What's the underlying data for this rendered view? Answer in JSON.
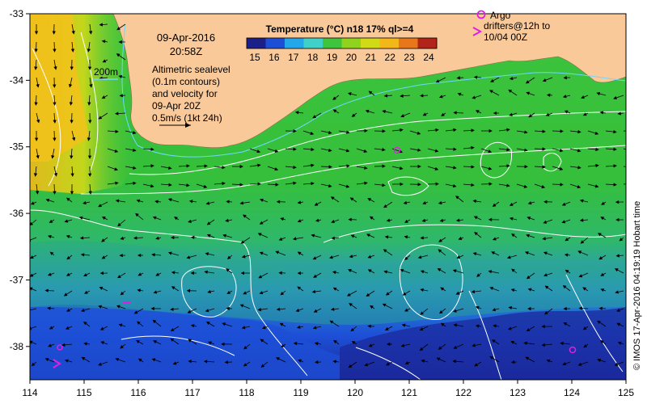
{
  "title_date": "09-Apr-2016",
  "title_time": "20:58Z",
  "colorbar": {
    "title": "Temperature (°C) n18 17% ql>=4",
    "ticks": [
      "15",
      "16",
      "17",
      "18",
      "19",
      "20",
      "21",
      "22",
      "23",
      "24"
    ],
    "colors": [
      "#1b1f8a",
      "#1d4fd6",
      "#22a7ea",
      "#3fd1c8",
      "#3ec43e",
      "#8fd31f",
      "#d2d917",
      "#f2b81a",
      "#e8771b",
      "#b0241c"
    ]
  },
  "legend": {
    "isobath_label": "200m",
    "description_lines": [
      "Altimetric sealevel",
      "(0.1m contours)",
      "and velocity for",
      "09-Apr 20Z",
      "0.5m/s (1kt 24h)"
    ]
  },
  "argo": {
    "line1": "Argo",
    "line2": "drifters@12h to",
    "line3": "10/04 00Z"
  },
  "axes": {
    "x_ticks": [
      "114",
      "115",
      "116",
      "117",
      "118",
      "119",
      "120",
      "121",
      "122",
      "123",
      "124",
      "125"
    ],
    "y_ticks": [
      "-33",
      "-34",
      "-35",
      "-36",
      "-37",
      "-38"
    ],
    "lon_range": [
      114,
      125
    ],
    "lat_range": [
      -33,
      -38.5
    ]
  },
  "credit": "© IMOS 17-Apr-2016 04:19:19 Hobart time",
  "colors": {
    "land": "#f9c99a",
    "deep_blue": "#1b2a9c",
    "ocean_green": "#3cc43c",
    "argo_magenta": "#e020e0",
    "contour": "#ffffff"
  }
}
